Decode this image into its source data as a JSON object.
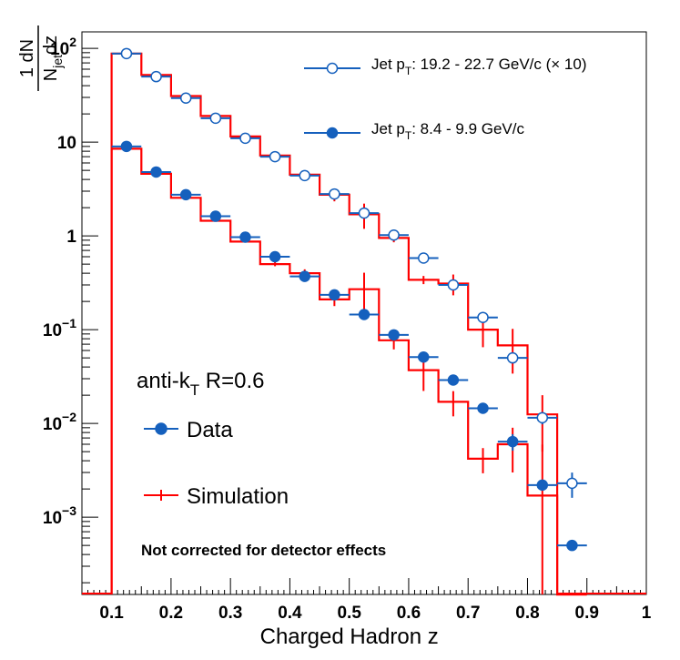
{
  "chart_data": {
    "type": "step-histogram-with-points",
    "xlabel": "Charged Hadron z",
    "ylabel": "1/Njet dN/dz",
    "ylabel_parts": {
      "numerator": "1 dN",
      "den_main": "N",
      "den_sub": "jet",
      "den_tail": "dz"
    },
    "xlim": [
      0.05,
      1.0
    ],
    "ylim_log": [
      0.00015,
      150
    ],
    "yscale": "log",
    "xticks": [
      0.1,
      0.2,
      0.3,
      0.4,
      0.5,
      0.6,
      0.7,
      0.8,
      0.9,
      1.0
    ],
    "xtick_labels": [
      "0.1",
      "0.2",
      "0.3",
      "0.4",
      "0.5",
      "0.6",
      "0.7",
      "0.8",
      "0.9",
      "1"
    ],
    "yticks": [
      {
        "value": 0.001,
        "base": "10",
        "exp": "−3"
      },
      {
        "value": 0.01,
        "base": "10",
        "exp": "−2"
      },
      {
        "value": 0.1,
        "base": "10",
        "exp": "−1"
      },
      {
        "value": 1,
        "base": "1",
        "exp": ""
      },
      {
        "value": 10,
        "base": "10",
        "exp": ""
      },
      {
        "value": 100,
        "base": "10",
        "exp": "2"
      }
    ],
    "bin_edges": [
      0.1,
      0.15,
      0.2,
      0.25,
      0.3,
      0.35,
      0.4,
      0.45,
      0.5,
      0.55,
      0.6,
      0.65,
      0.7,
      0.75,
      0.8,
      0.85,
      0.9
    ],
    "colors": {
      "data": "#1560bd",
      "simulation": "#ff0000"
    },
    "series": [
      {
        "name": "Jet pT: 19.2 - 22.7 GeV/c (× 10)",
        "marker": "open-circle",
        "data_values": [
          88,
          50,
          29.5,
          18,
          11,
          7,
          4.4,
          2.8,
          1.75,
          1.02,
          0.58,
          0.3,
          0.135,
          0.05,
          0.0115,
          0.0023
        ],
        "data_errors_rel": [
          0,
          0,
          0,
          0,
          0,
          0,
          0,
          0.05,
          0.08,
          0.05,
          0.04,
          0.08,
          0.1,
          0.1,
          0.15,
          0.3
        ],
        "sim_values": [
          88,
          52,
          31,
          19,
          11.5,
          7.2,
          4.5,
          2.75,
          1.7,
          0.95,
          0.34,
          0.31,
          0.1,
          0.068,
          0.0125,
          null
        ],
        "sim_errors_rel": [
          0,
          0,
          0,
          0,
          0,
          0,
          0,
          0.15,
          0.3,
          0.1,
          0.1,
          0.25,
          0.35,
          0.5,
          0.6,
          null
        ]
      },
      {
        "name": "Jet pT: 8.4 - 9.9 GeV/c",
        "marker": "filled-circle",
        "data_values": [
          9,
          4.8,
          2.75,
          1.62,
          0.97,
          0.6,
          0.37,
          0.235,
          0.145,
          0.088,
          0.051,
          0.029,
          0.0145,
          0.0064,
          0.0022,
          0.0005
        ],
        "data_errors_rel": [
          0,
          0,
          0,
          0,
          0,
          0,
          0,
          0,
          0,
          0,
          0,
          0,
          0,
          0.2,
          0,
          0
        ],
        "sim_values": [
          8.5,
          4.6,
          2.55,
          1.45,
          0.87,
          0.5,
          0.4,
          0.21,
          0.27,
          0.077,
          0.037,
          0.017,
          0.0042,
          0.006,
          0.0017,
          null
        ],
        "sim_errors_rel": [
          0,
          0,
          0,
          0,
          0,
          0.05,
          0.1,
          0.15,
          0.5,
          0.2,
          0.4,
          0.3,
          0.3,
          0.5,
          2.5,
          null
        ]
      }
    ],
    "legend_top": [
      {
        "prefix": "Jet p",
        "sub": "T",
        "suffix": ": 19.2 - 22.7 GeV/c (× 10)",
        "marker": "open-circle"
      },
      {
        "prefix": "Jet p",
        "sub": "T",
        "suffix": ": 8.4 - 9.9 GeV/c",
        "marker": "filled-circle"
      }
    ],
    "annotation": {
      "prefix": "anti-k",
      "sub": "T",
      "suffix": " R=0.6"
    },
    "legend_bottom": [
      {
        "label": "Data",
        "marker": "filled-circle"
      },
      {
        "label": "Simulation",
        "marker": "red-line"
      }
    ],
    "note": "Not corrected for detector effects"
  }
}
